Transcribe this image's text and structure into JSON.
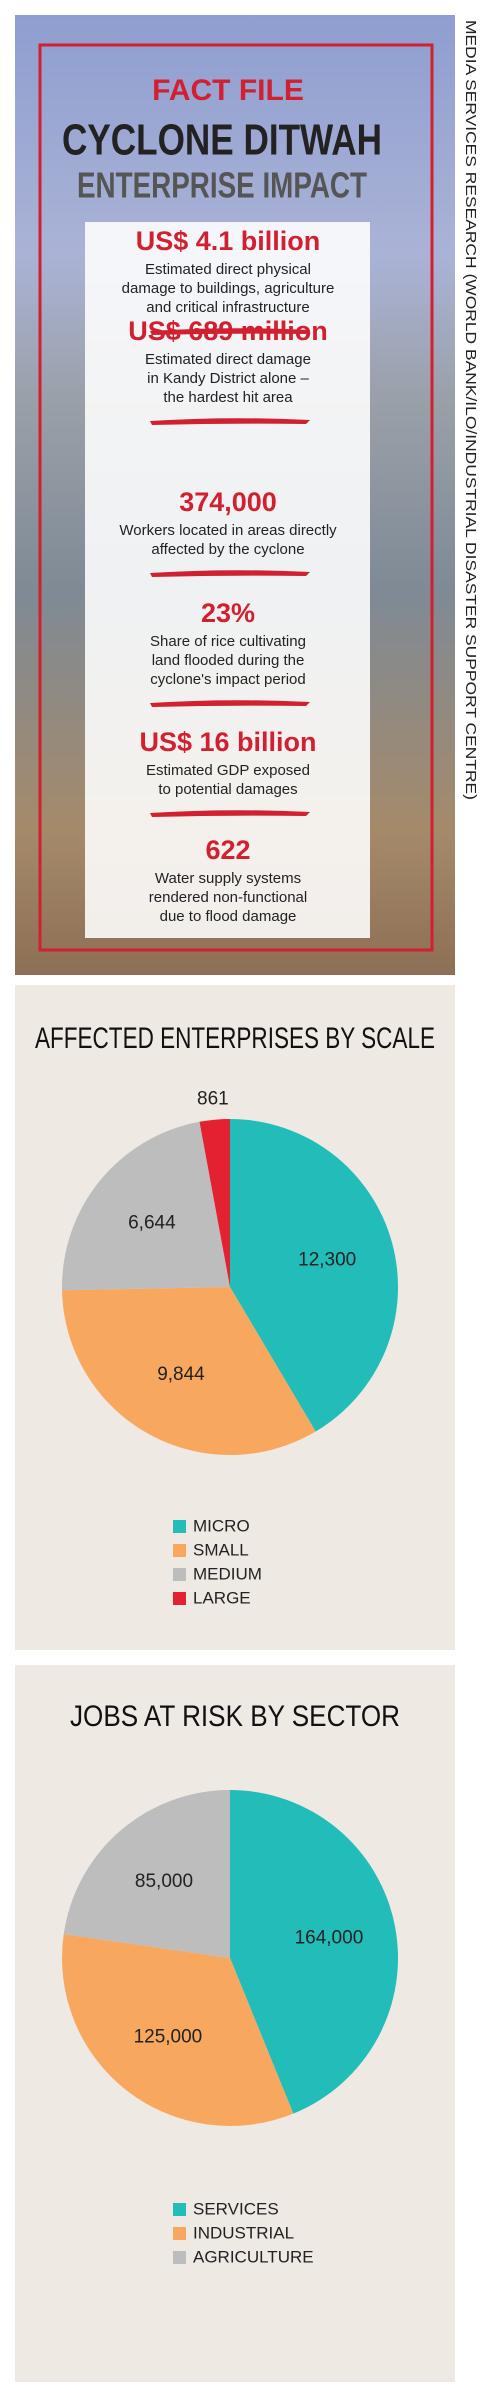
{
  "fact_file": {
    "label": "FACT FILE",
    "title": "CYCLONE DITWAH",
    "subtitle": "ENTERPRISE IMPACT",
    "facts": [
      {
        "figure": "US$ 4.1 billion",
        "description": [
          "Estimated direct physical",
          "damage to buildings, agriculture",
          "and critical infrastructure"
        ]
      },
      {
        "figure": "US$ 689 million",
        "description": [
          "Estimated direct damage",
          "in Kandy District alone –",
          "the hardest hit area"
        ]
      },
      {
        "figure": "374,000",
        "description": [
          "Workers located in areas directly",
          "affected by the cyclone"
        ]
      },
      {
        "figure": "23%",
        "description": [
          "Share of rice cultivating",
          "land flooded during the",
          "cyclone's impact period"
        ]
      },
      {
        "figure": "US$ 16 billion",
        "description": [
          "Estimated GDP exposed",
          "to potential damages"
        ]
      },
      {
        "figure": "622",
        "description": [
          "Water supply systems",
          "rendered non-functional",
          "due to flood damage"
        ]
      }
    ]
  },
  "source": "MEDIA SERVICES RESEARCH (WORLD BANK/ILO/INDUSTRIAL DISASTER SUPPORT CENTRE)",
  "chart_data": [
    {
      "type": "pie",
      "title": "AFFECTED ENTERPRISES BY SCALE",
      "categories": [
        "MICRO",
        "SMALL",
        "MEDIUM",
        "LARGE"
      ],
      "values": [
        12300,
        9844,
        6644,
        861
      ],
      "value_labels": [
        "12,300",
        "9,844",
        "6,644",
        "861"
      ],
      "colors": [
        "#22bdb9",
        "#f7a85e",
        "#bdbdbd",
        "#e32130"
      ]
    },
    {
      "type": "pie",
      "title": "JOBS AT RISK BY SECTOR",
      "categories": [
        "SERVICES",
        "INDUSTRIAL",
        "AGRICULTURE"
      ],
      "values": [
        164000,
        125000,
        85000
      ],
      "value_labels": [
        "164,000",
        "125,000",
        "85,000"
      ],
      "colors": [
        "#22bdb9",
        "#f7a85e",
        "#bdbdbd"
      ]
    }
  ]
}
